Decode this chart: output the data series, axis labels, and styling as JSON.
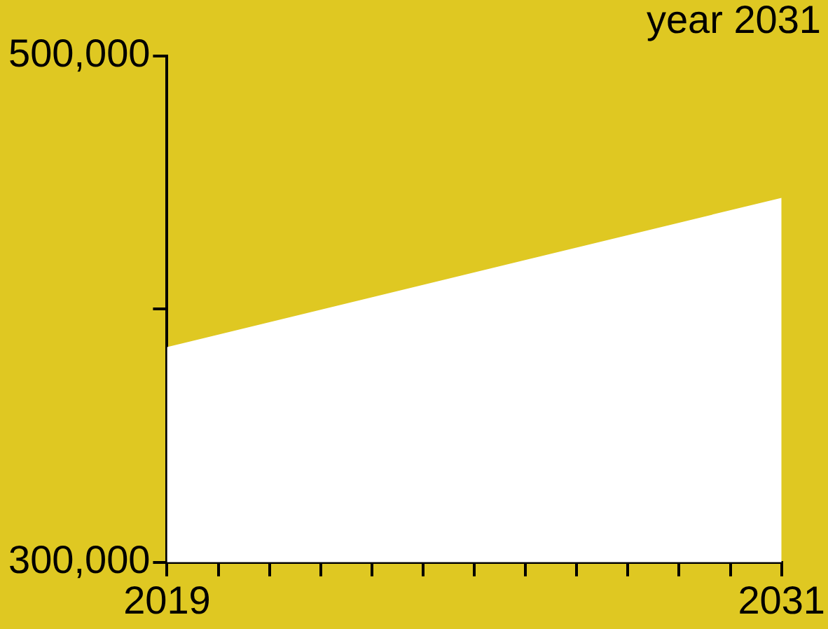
{
  "chart_data": {
    "type": "area",
    "annotations": [
      "year 2031"
    ],
    "x": [
      2019,
      2031
    ],
    "series": [
      {
        "color": "#ffffff",
        "values": [
          385000,
          444000
        ]
      }
    ],
    "xlim": [
      2019,
      2031
    ],
    "xticks": [
      2019,
      {
        "value": 2020,
        "label": null
      },
      {
        "value": 2021,
        "label": null
      },
      {
        "value": 2022,
        "label": null
      },
      {
        "value": 2023,
        "label": null
      },
      {
        "value": 2024,
        "label": null
      },
      {
        "value": 2025,
        "label": null
      },
      {
        "value": 2026,
        "label": null
      },
      {
        "value": 2027,
        "label": null
      },
      {
        "value": 2028,
        "label": null
      },
      {
        "value": 2029,
        "label": null
      },
      {
        "value": 2030,
        "label": null
      },
      2031
    ],
    "ylim": [
      300000,
      500000
    ],
    "yticks": [
      {
        "value": 300000,
        "label": "300,000"
      },
      {
        "value": 400000,
        "label": null
      },
      {
        "value": 500000,
        "label": "500,000"
      }
    ],
    "grid": false,
    "legend": false
  }
}
